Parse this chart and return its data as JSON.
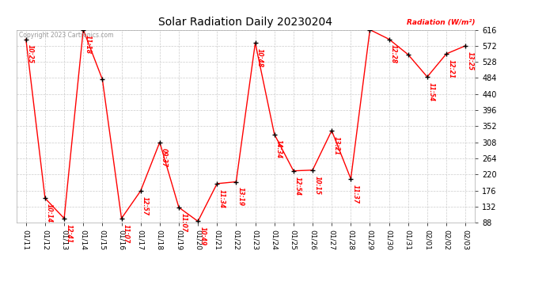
{
  "title": "Solar Radiation Daily 20230204",
  "ylabel": "Radiation (W/m²)",
  "copyright": "Copyright 2023 Cartronics.com",
  "line_color": "red",
  "bg_color": "white",
  "grid_color": "#cccccc",
  "ylim_min": 88.0,
  "ylim_max": 616.0,
  "yticks": [
    88.0,
    132.0,
    176.0,
    220.0,
    264.0,
    308.0,
    352.0,
    396.0,
    440.0,
    484.0,
    528.0,
    572.0,
    616.0
  ],
  "dates": [
    "01/11",
    "01/12",
    "01/13",
    "01/14",
    "01/15",
    "01/16",
    "01/17",
    "01/18",
    "01/19",
    "01/20",
    "01/21",
    "01/22",
    "01/23",
    "01/24",
    "01/25",
    "01/26",
    "01/27",
    "01/28",
    "01/29",
    "01/30",
    "01/31",
    "02/01",
    "02/02",
    "02/03"
  ],
  "values": [
    590,
    155,
    100,
    616,
    480,
    100,
    175,
    308,
    130,
    92,
    195,
    200,
    580,
    330,
    230,
    232,
    340,
    208,
    616,
    590,
    548,
    487,
    550,
    572
  ],
  "time_labels": [
    "10:25",
    "10:14",
    "12:41",
    "11:18",
    "",
    "11:07",
    "12:57",
    "09:37",
    "11:07",
    "10:49",
    "11:34",
    "13:19",
    "10:48",
    "14:34",
    "12:54",
    "10:15",
    "13:21",
    "11:37",
    "",
    "12:28",
    "",
    "11:54",
    "12:21",
    "13:25"
  ],
  "label_show": [
    true,
    true,
    true,
    true,
    false,
    true,
    true,
    true,
    true,
    true,
    true,
    true,
    true,
    true,
    true,
    true,
    true,
    true,
    false,
    true,
    false,
    true,
    true,
    true
  ]
}
